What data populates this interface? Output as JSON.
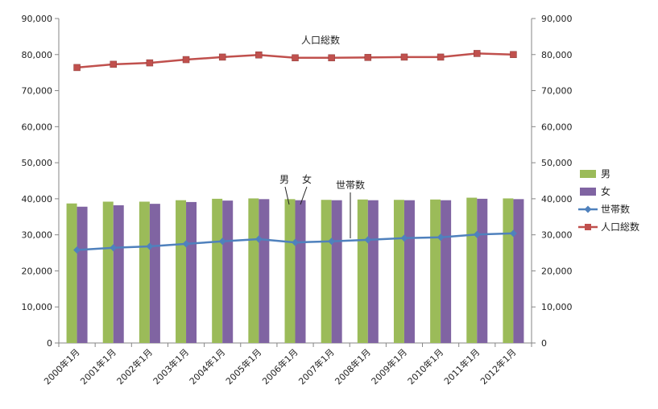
{
  "chart_data": {
    "type": "bar",
    "categories": [
      "2000年1月",
      "2001年1月",
      "2002年1月",
      "2003年1月",
      "2004年1月",
      "2005年1月",
      "2006年1月",
      "2007年1月",
      "2008年1月",
      "2009年1月",
      "2010年1月",
      "2011年1月",
      "2012年1月"
    ],
    "series": [
      {
        "name": "男",
        "type": "bar",
        "color": "#9BBB59",
        "values": [
          38700,
          39200,
          39200,
          39600,
          40000,
          40100,
          39900,
          39700,
          39800,
          39700,
          39800,
          40300,
          40100
        ]
      },
      {
        "name": "女",
        "type": "bar",
        "color": "#8064A2",
        "values": [
          37800,
          38200,
          38600,
          39100,
          39500,
          39900,
          39600,
          39600,
          39600,
          39600,
          39600,
          40000,
          39900
        ]
      },
      {
        "name": "世帯数",
        "type": "line",
        "color": "#4F81BD",
        "marker": "diamond",
        "values": [
          25800,
          26400,
          26800,
          27500,
          28200,
          28800,
          27900,
          28200,
          28600,
          29100,
          29300,
          30100,
          30400
        ]
      },
      {
        "name": "人口総数",
        "type": "line",
        "color": "#C0504D",
        "marker": "square",
        "values": [
          76400,
          77300,
          77700,
          78600,
          79300,
          79900,
          79100,
          79100,
          79200,
          79300,
          79300,
          80300,
          80000
        ]
      }
    ],
    "ylim": [
      0,
      90000
    ],
    "y_ticks": [
      "0",
      "10,000",
      "20,000",
      "30,000",
      "40,000",
      "50,000",
      "60,000",
      "70,000",
      "80,000",
      "90,000"
    ],
    "y2_ticks": [
      "0",
      "10,000",
      "20,000",
      "30,000",
      "40,000",
      "50,000",
      "60,000",
      "70,000",
      "80,000",
      "90,000"
    ],
    "grid": false,
    "legend": "right",
    "annotations": [
      {
        "text": "人口総数",
        "target": "人口総数"
      },
      {
        "text": "男",
        "target": "男"
      },
      {
        "text": "女",
        "target": "女"
      },
      {
        "text": "世帯数",
        "target": "世帯数"
      }
    ]
  }
}
